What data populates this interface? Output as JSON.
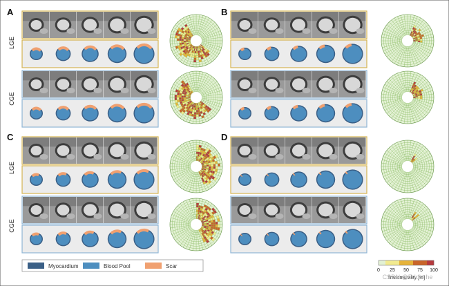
{
  "panels": [
    {
      "label": "A",
      "rows": [
        "LGE",
        "CGE"
      ],
      "scar": 0.55,
      "scarStart": 0.35,
      "ringMax": 5
    },
    {
      "label": "B",
      "rows": [
        "",
        ""
      ],
      "scar": 0.22,
      "scarStart": 0.05,
      "ringMax": 3
    },
    {
      "label": "C",
      "rows": [
        "LGE",
        "CGE"
      ],
      "scar": 0.42,
      "scarStart": 0.0,
      "ringMax": 6
    },
    {
      "label": "D",
      "rows": [
        "",
        ""
      ],
      "scar": 0.05,
      "scarStart": 0.08,
      "ringMax": 2
    }
  ],
  "legend": {
    "items": [
      {
        "label": "Myocardium",
        "color": "#3a5f86"
      },
      {
        "label": "Blood Pool",
        "color": "#4d8ebf"
      },
      {
        "label": "Scar",
        "color": "#f0a070"
      }
    ]
  },
  "colorbar": {
    "ticks": [
      "0",
      "25",
      "50",
      "75",
      "100"
    ],
    "title": "Transmurality [%]",
    "colors": [
      "#e3f1d4",
      "#f2ea8f",
      "#e6b33a",
      "#c9652a",
      "#b73a3e"
    ]
  },
  "watermark": "CSDN @Eddie he",
  "colors": {
    "imgBg": "#dcdcdc",
    "segBg": "#ececec",
    "lgeBorder": "#d6b452",
    "cgeBorder": "#8fb6d6",
    "myocardium": "#3a5f86",
    "bloodPool": "#4d8ebf",
    "scar": "#f0a070",
    "gridStroke": "#8fbf6a",
    "healthy": "#e3f1d4"
  }
}
